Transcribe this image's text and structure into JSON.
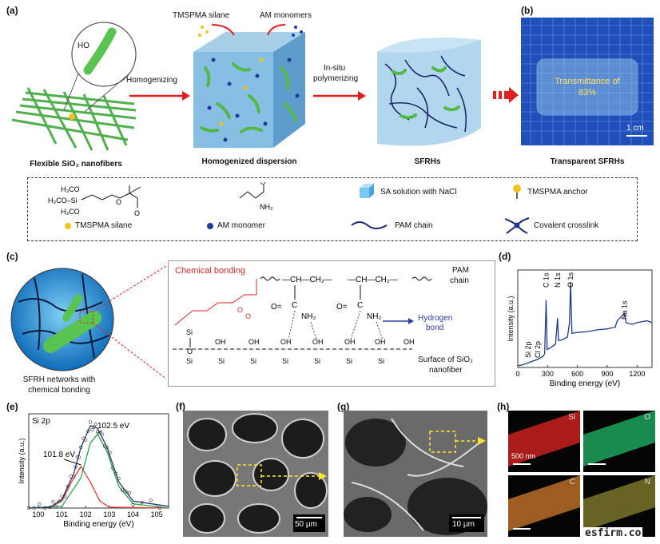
{
  "panels": {
    "a": "(a)",
    "b": "(b)",
    "c": "(c)",
    "d": "(d)",
    "e": "(e)",
    "f": "(f)",
    "g": "(g)",
    "h": "(h)"
  },
  "top": {
    "tmspma_label": "TMSPMA silane",
    "am_label": "AM monomers",
    "homogenizing": "Homogenizing",
    "insitu_1": "In-situ",
    "insitu_2": "polymerizing",
    "ho": "HO",
    "transmittance_1": "Transmittance of",
    "transmittance_2": "83%",
    "scale_b": "1 cm",
    "cap_fibers": "Flexible SiO₂ nanofibers",
    "cap_dispersion": "Homogenized dispersion",
    "cap_sfrhs": "SFRHs",
    "cap_transparent": "Transparent SFRHs"
  },
  "legend": {
    "sa_solution": "SA solution with NaCl",
    "tmspma_anchor": "TMSPMA anchor",
    "tmspma_silane": "TMSPMA silane",
    "am_monomer": "AM monomer",
    "pam_chain": "PAM chain",
    "covalent": "Covalent crosslink",
    "chem_h3co_1": "H₃CO",
    "chem_h3co_2": "H₃CO–Si",
    "chem_h3co_3": "H₃CO",
    "chem_nh2": "NH₂"
  },
  "c": {
    "chemical_bonding": "Chemical bonding",
    "pam": "PAM",
    "chain": "chain",
    "hydrogen": "Hydrogen",
    "bond": "bond",
    "surface_1": "Surface of SiO₂",
    "surface_2": "nanofiber",
    "cap_1": "SFRH networks with",
    "cap_2": "chemical bonding",
    "ch": "CH",
    "ch2": "CH₂",
    "c": "C",
    "nh2": "NH₂",
    "o": "O",
    "oh": "OH",
    "si": "Si"
  },
  "chart_data": [
    {
      "type": "line",
      "panel": "d",
      "xlabel": "Binding energy (eV)",
      "ylabel": "Intensity (a.u.)",
      "xlim": [
        0,
        1350
      ],
      "xticks": [
        0,
        300,
        600,
        900,
        1200
      ],
      "peak_labels": [
        {
          "label": "Si 2p",
          "x": 103
        },
        {
          "label": "Cl 2p",
          "x": 200
        },
        {
          "label": "C 1s",
          "x": 285
        },
        {
          "label": "N 1s",
          "x": 400
        },
        {
          "label": "O 1s",
          "x": 531
        },
        {
          "label": "Na 1s",
          "x": 1072
        }
      ],
      "series": [
        {
          "x": [
            0,
            50,
            100,
            150,
            200,
            250,
            270,
            285,
            295,
            330,
            380,
            400,
            410,
            450,
            500,
            520,
            531,
            545,
            600,
            700,
            800,
            900,
            980,
            1000,
            1072,
            1090,
            1150,
            1200,
            1300,
            1350
          ],
          "y": [
            0.02,
            0.03,
            0.05,
            0.07,
            0.09,
            0.12,
            0.15,
            0.75,
            0.2,
            0.22,
            0.26,
            0.55,
            0.3,
            0.31,
            0.34,
            0.5,
            0.95,
            0.38,
            0.39,
            0.4,
            0.42,
            0.43,
            0.45,
            0.52,
            0.6,
            0.5,
            0.48,
            0.5,
            0.52,
            0.5
          ]
        }
      ]
    },
    {
      "type": "line",
      "panel": "e",
      "title": "Si 2p",
      "xlabel": "Binding energy (eV)",
      "ylabel": "Intensity (a.u.)",
      "xlim": [
        99.6,
        105.5
      ],
      "xticks": [
        100,
        101,
        102,
        103,
        104,
        105
      ],
      "annotations": [
        {
          "label": "101.8 eV",
          "x": 101.8
        },
        {
          "label": "102.5 eV",
          "x": 102.5
        }
      ],
      "series": [
        {
          "x": [
            99.6,
            100.5,
            101.0,
            101.4,
            101.8,
            102.2,
            102.6,
            103.0,
            105.5
          ],
          "y": [
            0.0,
            0.01,
            0.08,
            0.3,
            0.48,
            0.3,
            0.08,
            0.01,
            0.0
          ],
          "color": "#e23b2e"
        },
        {
          "x": [
            99.6,
            101.0,
            101.8,
            102.2,
            102.5,
            102.9,
            103.4,
            104.0,
            105.5
          ],
          "y": [
            0.0,
            0.02,
            0.35,
            0.75,
            0.85,
            0.65,
            0.25,
            0.05,
            0.0
          ],
          "color": "#2e9e4e"
        },
        {
          "x": [
            99.6,
            100.5,
            101.0,
            101.5,
            101.8,
            102.2,
            102.5,
            102.9,
            103.4,
            104.0,
            105.5
          ],
          "y": [
            0.0,
            0.01,
            0.1,
            0.4,
            0.7,
            0.95,
            0.92,
            0.7,
            0.3,
            0.08,
            0.02
          ],
          "color": "#1f3b6e"
        }
      ]
    }
  ],
  "sem": {
    "f_scale": "50 μm",
    "g_scale": "10 μm"
  },
  "eds": {
    "si": "Si",
    "o": "O",
    "c": "C",
    "n": "N",
    "scale": "500 nm"
  },
  "watermark": "esfirm.co",
  "colors": {
    "arrow": "#e02020",
    "fiber": "#55c04a",
    "am": "#1f3a99",
    "silane": "#f2c21b",
    "pam": "#1b2a6b",
    "red_text": "#d62a2a",
    "blue_text": "#2a3f9e"
  }
}
